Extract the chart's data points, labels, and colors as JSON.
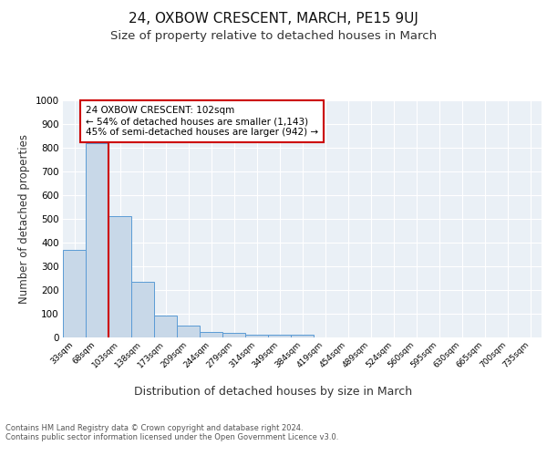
{
  "title1": "24, OXBOW CRESCENT, MARCH, PE15 9UJ",
  "title2": "Size of property relative to detached houses in March",
  "xlabel": "Distribution of detached houses by size in March",
  "ylabel": "Number of detached properties",
  "bin_labels": [
    "33sqm",
    "68sqm",
    "103sqm",
    "138sqm",
    "173sqm",
    "209sqm",
    "244sqm",
    "279sqm",
    "314sqm",
    "349sqm",
    "384sqm",
    "419sqm",
    "454sqm",
    "489sqm",
    "524sqm",
    "560sqm",
    "595sqm",
    "630sqm",
    "665sqm",
    "700sqm",
    "735sqm"
  ],
  "bar_heights": [
    370,
    820,
    510,
    235,
    92,
    50,
    22,
    18,
    13,
    10,
    12,
    0,
    0,
    0,
    0,
    0,
    0,
    0,
    0,
    0,
    0
  ],
  "bar_color": "#c8d8e8",
  "bar_edge_color": "#5b9bd5",
  "vline_color": "#cc0000",
  "annotation_text": "24 OXBOW CRESCENT: 102sqm\n← 54% of detached houses are smaller (1,143)\n45% of semi-detached houses are larger (942) →",
  "annotation_box_color": "#ffffff",
  "annotation_box_edge": "#cc0000",
  "ylim": [
    0,
    1000
  ],
  "yticks": [
    0,
    100,
    200,
    300,
    400,
    500,
    600,
    700,
    800,
    900,
    1000
  ],
  "background_color": "#eaf0f6",
  "footer_text": "Contains HM Land Registry data © Crown copyright and database right 2024.\nContains public sector information licensed under the Open Government Licence v3.0.",
  "title1_fontsize": 11,
  "title2_fontsize": 9.5,
  "xlabel_fontsize": 9,
  "ylabel_fontsize": 8.5
}
